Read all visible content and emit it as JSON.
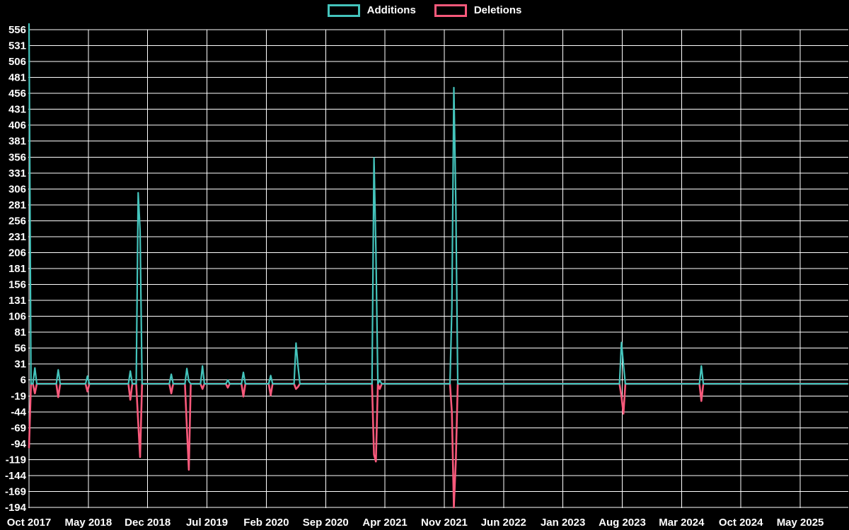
{
  "legend": {
    "position": "top-center"
  },
  "chart_data": {
    "type": "line",
    "title": "",
    "background": "#000000",
    "grid": "on",
    "grid_color": "#ffffff",
    "text_color": "#ffffff",
    "legend_position": "top-center",
    "series": [
      {
        "name": "Additions",
        "color": "#44c4bc"
      },
      {
        "name": "Deletions",
        "color": "#f8597b"
      }
    ],
    "x_axis": {
      "tick_labels": [
        "Oct 2017",
        "May 2018",
        "Dec 2018",
        "Jul 2019",
        "Feb 2020",
        "Sep 2020",
        "Apr 2021",
        "Nov 2021",
        "Jun 2022",
        "Jan 2023",
        "Aug 2023",
        "Mar 2024",
        "Oct 2024",
        "May 2025"
      ],
      "weeks_per_tick": 30.44
    },
    "y_axis": {
      "tick_labels": [
        556,
        531,
        506,
        481,
        456,
        431,
        406,
        381,
        356,
        331,
        306,
        281,
        256,
        231,
        206,
        181,
        156,
        131,
        106,
        81,
        56,
        31,
        6,
        -19,
        -44,
        -69,
        -94,
        -119,
        -144,
        -169,
        -194
      ],
      "min": -194,
      "max": 556,
      "tick_step": 25
    },
    "total_weeks": 421,
    "baseline_value": 0,
    "events": [
      {
        "week": 0,
        "date": "Oct 2017",
        "additions": 565,
        "deletions": -100
      },
      {
        "week": 3,
        "date": "Oct 2017",
        "additions": 25,
        "deletions": -15
      },
      {
        "week": 15,
        "date": "Jan 2018",
        "additions": 22,
        "deletions": -21
      },
      {
        "week": 30,
        "date": "Apr 2018",
        "additions": 12,
        "deletions": -12
      },
      {
        "week": 52,
        "date": "Sep 2018",
        "additions": 20,
        "deletions": -25
      },
      {
        "week": 56,
        "date": "Oct 2018",
        "additions": 300,
        "deletions": -60
      },
      {
        "week": 57,
        "date": "Nov 2018",
        "additions": 240,
        "deletions": -115
      },
      {
        "week": 73,
        "date": "Feb 2019",
        "additions": 15,
        "deletions": -15
      },
      {
        "week": 81,
        "date": "Apr 2019",
        "additions": 24,
        "deletions": -68
      },
      {
        "week": 82,
        "date": "Apr 2019",
        "additions": 4,
        "deletions": -135
      },
      {
        "week": 89,
        "date": "Jun 2019",
        "additions": 28,
        "deletions": -8
      },
      {
        "week": 102,
        "date": "Sep 2019",
        "additions": 6,
        "deletions": -6
      },
      {
        "week": 110,
        "date": "Nov 2019",
        "additions": 18,
        "deletions": -20
      },
      {
        "week": 124,
        "date": "Feb 2020",
        "additions": 13,
        "deletions": -18
      },
      {
        "week": 137,
        "date": "May 2020",
        "additions": 64,
        "deletions": -8
      },
      {
        "week": 138,
        "date": "May 2020",
        "additions": 29,
        "deletions": -5
      },
      {
        "week": 177,
        "date": "Feb 2021",
        "additions": 355,
        "deletions": -111
      },
      {
        "week": 178,
        "date": "Mar 2021",
        "additions": 210,
        "deletions": -122
      },
      {
        "week": 180,
        "date": "Mar 2021",
        "additions": 5,
        "deletions": -8
      },
      {
        "week": 217,
        "date": "Nov 2021",
        "additions": 120,
        "deletions": -45
      },
      {
        "week": 218,
        "date": "Dec 2021",
        "additions": 465,
        "deletions": -194
      },
      {
        "week": 219,
        "date": "Dec 2021",
        "additions": 280,
        "deletions": -120
      },
      {
        "week": 304,
        "date": "Jul 2023",
        "additions": 65,
        "deletions": -20
      },
      {
        "week": 305,
        "date": "Aug 2023",
        "additions": 30,
        "deletions": -47
      },
      {
        "week": 345,
        "date": "May 2024",
        "additions": 28,
        "deletions": -27
      }
    ]
  }
}
